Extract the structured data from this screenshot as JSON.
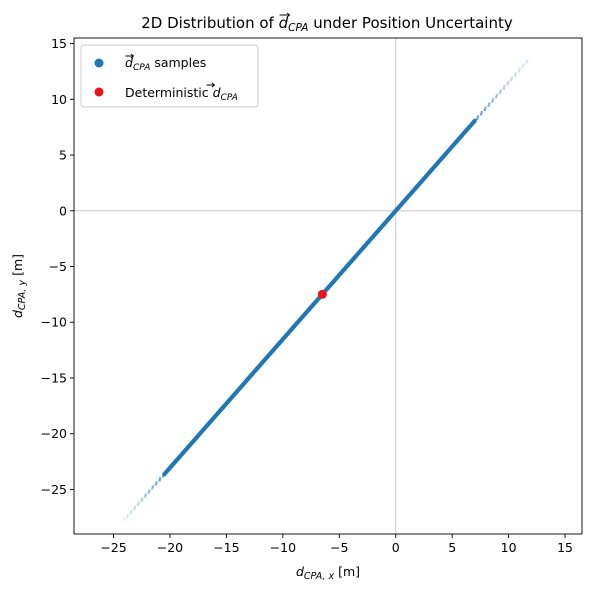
{
  "chart_data": {
    "type": "scatter",
    "title_parts": {
      "before": "2D Distribution of ",
      "symbol": "d",
      "sub": "CPA",
      "after": " under Position Uncertainty"
    },
    "xlabel_parts": {
      "symbol": "d",
      "sub": "CPA, x",
      "unit": " [m]"
    },
    "ylabel_parts": {
      "symbol": "d",
      "sub": "CPA, y",
      "unit": " [m]"
    },
    "xlim": [
      -28.5,
      16.5
    ],
    "ylim": [
      -29,
      15.5
    ],
    "x_ticks": [
      -25,
      -20,
      -15,
      -10,
      -5,
      0,
      5,
      10,
      15
    ],
    "y_ticks": [
      -25,
      -20,
      -15,
      -10,
      -5,
      0,
      5,
      10,
      15
    ],
    "x_tick_labels": [
      "−25",
      "−20",
      "−15",
      "−10",
      "−5",
      "0",
      "5",
      "10",
      "15"
    ],
    "y_tick_labels": [
      "−25",
      "−20",
      "−15",
      "−10",
      "−5",
      "0",
      "5",
      "10",
      "15"
    ],
    "reference_lines": {
      "x": 0,
      "y": 0,
      "color": "#c8c8c8"
    },
    "grid": false,
    "legend_position": "upper-left",
    "series": [
      {
        "name_parts": {
          "symbol": "d",
          "sub": "CPA",
          "after": " samples"
        },
        "color": "#1f77b4",
        "relation": "y = 1.153 * x",
        "dense_x_range": [
          -20.5,
          7.0
        ],
        "sparse_x_range": [
          -24.0,
          11.7
        ]
      },
      {
        "name_parts": {
          "before": "Deterministic ",
          "symbol": "d",
          "sub": "CPA"
        },
        "color": "#e8161a",
        "x": [
          -6.5
        ],
        "y": [
          -7.5
        ]
      }
    ]
  }
}
